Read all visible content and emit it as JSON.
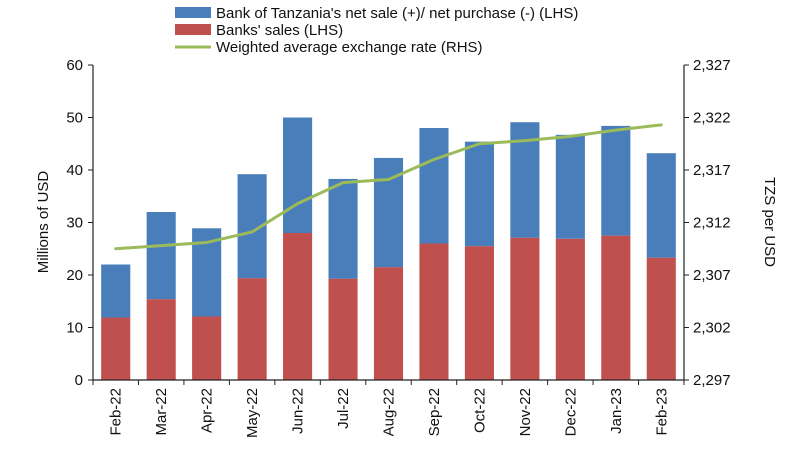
{
  "chart_data": {
    "type": "bar",
    "stacked": true,
    "categories": [
      "Feb-22",
      "Mar-22",
      "Apr-22",
      "May-22",
      "Jun-22",
      "Jul-22",
      "Aug-22",
      "Sep-22",
      "Oct-22",
      "Nov-22",
      "Dec-22",
      "Jan-23",
      "Feb-23"
    ],
    "series": [
      {
        "name": "Banks' sales (LHS)",
        "kind": "bar",
        "axis": "left",
        "color": "#c0504d",
        "values": [
          11.9,
          15.4,
          12.1,
          19.4,
          28.0,
          19.3,
          21.5,
          26.0,
          25.5,
          27.1,
          26.9,
          27.5,
          23.3
        ]
      },
      {
        "name": "Bank of Tanzania's net sale (+)/ net purchase (-) (LHS)",
        "kind": "bar",
        "axis": "left",
        "color": "#4a7ebb",
        "values": [
          10.1,
          16.6,
          16.8,
          19.8,
          22.0,
          19.0,
          20.8,
          22.0,
          19.9,
          22.0,
          19.8,
          20.9,
          19.9
        ]
      },
      {
        "name": "Weighted average exchange rate (RHS)",
        "kind": "line",
        "axis": "right",
        "color": "#9bbb59",
        "values": [
          2309.5,
          2309.8,
          2310.1,
          2311.1,
          2313.8,
          2315.8,
          2316.1,
          2318.0,
          2319.5,
          2319.8,
          2320.2,
          2320.8,
          2321.3
        ]
      }
    ],
    "ylabel": "Millions of USD",
    "ylim": [
      0,
      60
    ],
    "yticks": [
      0,
      10,
      20,
      30,
      40,
      50,
      60
    ],
    "y2label": "TZS per USD",
    "y2lim": [
      2297,
      2327
    ],
    "y2ticks": [
      "2,297",
      "2,302",
      "2,307",
      "2,312",
      "2,317",
      "2,322",
      "2,327"
    ],
    "y2tick_values": [
      2297,
      2302,
      2307,
      2312,
      2317,
      2322,
      2327
    ],
    "legend_position": "top",
    "grid": false
  }
}
